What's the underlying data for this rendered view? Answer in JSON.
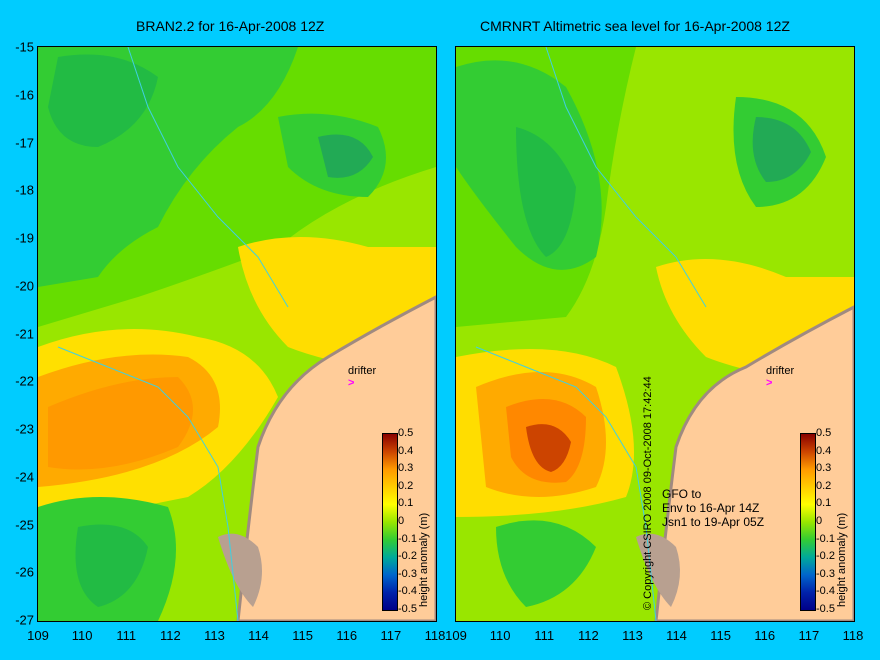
{
  "left_title": "BRAN2.2 for 16-Apr-2008 12Z",
  "right_title": "CMRNRT Altimetric sea level  for 16-Apr-2008 12Z",
  "y_ticks": [
    "-15",
    "-16",
    "-17",
    "-18",
    "-19",
    "-20",
    "-21",
    "-22",
    "-23",
    "-24",
    "-25",
    "-26",
    "-27"
  ],
  "x_ticks": [
    "109",
    "110",
    "111",
    "112",
    "113",
    "114",
    "115",
    "116",
    "117",
    "118"
  ],
  "colorbar": {
    "title": "height anomaly (m)",
    "ticks": [
      "0.5",
      "0.4",
      "0.3",
      "0.2",
      "0.1",
      "0",
      "-0.1",
      "-0.2",
      "-0.3",
      "-0.4",
      "-0.5"
    ]
  },
  "drifter_label": "drifter",
  "drifter_arrow": ">",
  "right_note": [
    "GFO to",
    "Env to 16-Apr 14Z",
    "Jsn1 to 19-Apr 05Z"
  ],
  "copyright": "© Copyright CSIRO 2008    09-Oct-2008 17:42:44",
  "colors": {
    "background": "#00ccff",
    "land": "#ffcc99",
    "coastline": "#a08a80",
    "drifter": "#ff00ff",
    "contour": "#40d0e0"
  }
}
